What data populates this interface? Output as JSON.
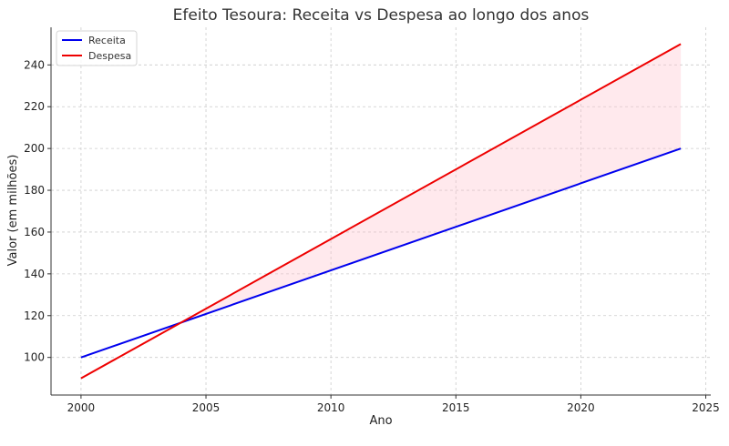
{
  "chart_data": {
    "type": "line",
    "title": "Efeito Tesoura: Receita vs Despesa ao longo dos anos",
    "xlabel": "Ano",
    "ylabel": "Valor (em milhões)",
    "x": [
      2000,
      2024
    ],
    "series": [
      {
        "name": "Receita",
        "color": "#0000ee",
        "values": [
          100,
          200
        ]
      },
      {
        "name": "Despesa",
        "color": "#ee0000",
        "values": [
          90,
          250
        ]
      }
    ],
    "fill_between": {
      "color": "#ffc0cb",
      "where": "Despesa > Receita"
    },
    "xlim": [
      1998.8,
      2025.2
    ],
    "ylim": [
      82,
      258
    ],
    "xticks": [
      2000,
      2005,
      2010,
      2015,
      2020,
      2025
    ],
    "yticks": [
      100,
      120,
      140,
      160,
      180,
      200,
      220,
      240
    ],
    "grid": true,
    "legend_position": "top-left"
  }
}
